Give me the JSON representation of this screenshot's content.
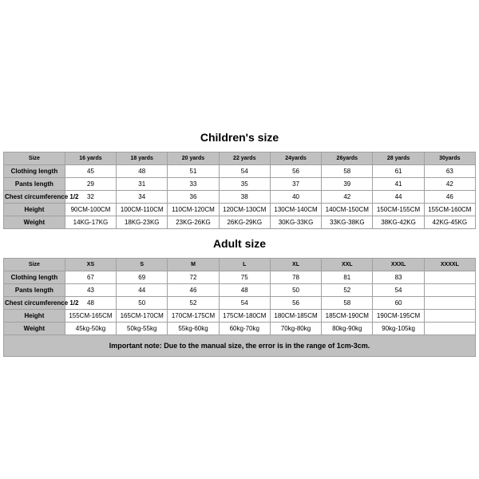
{
  "children": {
    "title": "Children's size",
    "headers": [
      "Size",
      "16 yards",
      "18 yards",
      "20 yards",
      "22 yards",
      "24yards",
      "26yards",
      "28 yards",
      "30yards"
    ],
    "rows": [
      {
        "label": "Clothing length",
        "cells": [
          "45",
          "48",
          "51",
          "54",
          "56",
          "58",
          "61",
          "63"
        ]
      },
      {
        "label": "Pants length",
        "cells": [
          "29",
          "31",
          "33",
          "35",
          "37",
          "39",
          "41",
          "42"
        ]
      },
      {
        "label": "Chest circumference 1/2",
        "cells": [
          "32",
          "34",
          "36",
          "38",
          "40",
          "42",
          "44",
          "46"
        ]
      },
      {
        "label": "Height",
        "cells": [
          "90CM-100CM",
          "100CM-110CM",
          "110CM-120CM",
          "120CM-130CM",
          "130CM-140CM",
          "140CM-150CM",
          "150CM-155CM",
          "155CM-160CM"
        ]
      },
      {
        "label": "Weight",
        "cells": [
          "14KG-17KG",
          "18KG-23KG",
          "23KG-26KG",
          "26KG-29KG",
          "30KG-33KG",
          "33KG-38KG",
          "38KG-42KG",
          "42KG-45KG"
        ]
      }
    ]
  },
  "adult": {
    "title": "Adult size",
    "headers": [
      "Size",
      "XS",
      "S",
      "M",
      "L",
      "XL",
      "XXL",
      "XXXL",
      "XXXXL"
    ],
    "rows": [
      {
        "label": "Clothing length",
        "cells": [
          "67",
          "69",
          "72",
          "75",
          "78",
          "81",
          "83",
          ""
        ]
      },
      {
        "label": "Pants length",
        "cells": [
          "43",
          "44",
          "46",
          "48",
          "50",
          "52",
          "54",
          ""
        ]
      },
      {
        "label": "Chest circumference 1/2",
        "cells": [
          "48",
          "50",
          "52",
          "54",
          "56",
          "58",
          "60",
          ""
        ]
      },
      {
        "label": "Height",
        "cells": [
          "155CM-165CM",
          "165CM-170CM",
          "170CM-175CM",
          "175CM-180CM",
          "180CM-185CM",
          "185CM-190CM",
          "190CM-195CM",
          ""
        ]
      },
      {
        "label": "Weight",
        "cells": [
          "45kg-50kg",
          "50kg-55kg",
          "55kg-60kg",
          "60kg-70kg",
          "70kg-80kg",
          "80kg-90kg",
          "90kg-105kg",
          ""
        ]
      }
    ]
  },
  "note": "Important note: Due to the manual size, the error is in the range of 1cm-3cm.",
  "style": {
    "header_bg": "#c0c0c0",
    "label_bg": "#c0c0c0",
    "cell_bg": "#ffffff",
    "border_color": "#a0a0a0",
    "title_fontsize": 14,
    "header_fontsize": 7,
    "cell_fontsize": 8,
    "label_fontsize": 6.5,
    "note_fontsize": 9
  }
}
